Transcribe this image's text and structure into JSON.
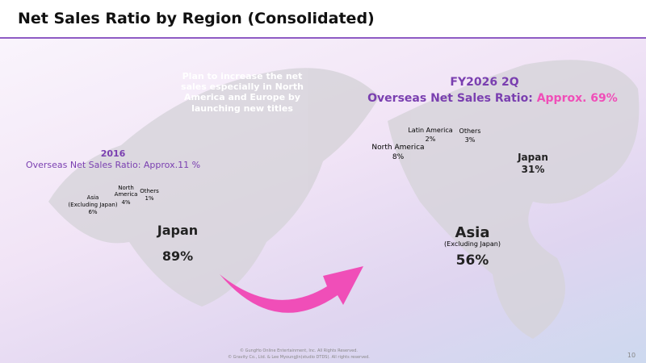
{
  "header": {
    "title": "Net Sales Ratio by Region (Consolidated)"
  },
  "note": "Plan to increase the net sales especially in North America and Europe by launching new titles",
  "before": {
    "period": "2016",
    "ratio": "Overseas Net Sales Ratio: Approx.11 %",
    "segments": [
      {
        "label": "Japan",
        "value": "89%"
      },
      {
        "label": "Asia",
        "sublabel": "(Excluding Japan)",
        "value": "6%"
      },
      {
        "label": "North America",
        "value": "4%"
      },
      {
        "label": "Others",
        "value": "1%"
      }
    ]
  },
  "after": {
    "period": "FY2026 2Q",
    "ratio": "Overseas Net Sales Ratio:",
    "ratio_value": "Approx. 69%",
    "segments": [
      {
        "label": "Japan",
        "value": "31%"
      },
      {
        "label": "Asia",
        "sublabel": "(Excluding Japan)",
        "value": "56%"
      },
      {
        "label": "North America",
        "value": "8%"
      },
      {
        "label": "Latin America",
        "value": "2%"
      },
      {
        "label": "Others",
        "value": "3%"
      }
    ]
  },
  "footer": {
    "lines": [
      "© GungHo Online Entertainment, Inc. All Rights Reserved.",
      "© Gravity Co., Ltd. & Lee MyoungJin(studio DTDS). All rights reserved."
    ],
    "page": "10"
  }
}
